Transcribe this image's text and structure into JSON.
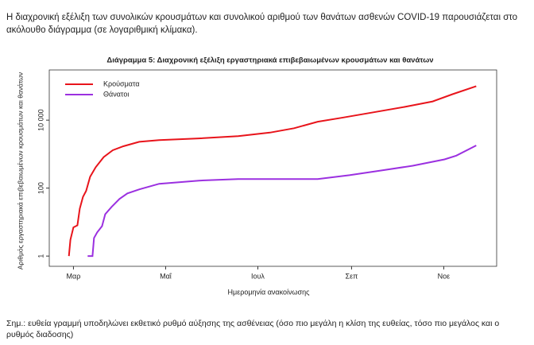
{
  "intro": "Η διαχρονική εξέλιξη των συνολικών κρουσμάτων και συνολικού αριθμού των θανάτων ασθενών COVID-19 παρουσιάζεται στο ακόλουθο διάγραμμα (σε λογαριθμική κλίμακα).",
  "chart_data": {
    "type": "line",
    "title": "Διάγραμμα 5: Διαχρονική εξέλιξη εργαστηριακά επιβεβαιωμένων κρουσμάτων και θανάτων",
    "xlabel": "Ημερομηνία ανακοίνωσης",
    "ylabel": "Αριθμός εργαστηριακά επιβεβαιωμένων κρουσμάτων και θανάτων",
    "log_y": true,
    "legend": "top-left",
    "xlim": [
      45,
      341
    ],
    "xticks": [
      {
        "value": 61,
        "label": "Μαρ"
      },
      {
        "value": 122,
        "label": "Μαΐ"
      },
      {
        "value": 183,
        "label": "Ιουλ"
      },
      {
        "value": 245,
        "label": "Σεπ"
      },
      {
        "value": 306,
        "label": "Νοε"
      }
    ],
    "ylim": [
      0.5,
      300000
    ],
    "yticks": [
      1,
      100,
      {
        "value": 10000,
        "label": "10 000"
      }
    ],
    "series": [
      {
        "name": "Κρούσματα",
        "color": "#e8141b",
        "x": [
          58,
          59,
          61,
          63.6,
          65.2,
          67.3,
          69.4,
          72,
          75.7,
          81,
          87,
          94,
          104.5,
          117.7,
          144,
          170,
          191,
          207,
          222.6,
          238.4,
          259.4,
          280.4,
          298.7,
          311.8,
          327.5
        ],
        "values": [
          1,
          3,
          7,
          8,
          25,
          55,
          83,
          215,
          410,
          820,
          1300,
          1700,
          2300,
          2600,
          2900,
          3400,
          4300,
          5800,
          9000,
          11700,
          17000,
          24700,
          35600,
          58000,
          100000
        ]
      },
      {
        "name": "Θάνατοι",
        "color": "#9b30e0",
        "x": [
          70.4,
          73.6,
          74.6,
          76.7,
          79.9,
          82,
          86.2,
          91.4,
          96.7,
          104.6,
          117.7,
          144,
          170,
          196.3,
          222.6,
          243.6,
          264.5,
          285.5,
          306.5,
          314.3,
          327.5
        ],
        "values": [
          1,
          1,
          3.4,
          5,
          7.6,
          17,
          28,
          48,
          70,
          92,
          134,
          166,
          184,
          184,
          184,
          240,
          330,
          455,
          700,
          900,
          1800
        ]
      }
    ]
  },
  "note": "Σημ.: ευθεία γραμμή υποδηλώνει εκθετικό ρυθμό αύξησης της ασθένειας (όσο πιο μεγάλη η κλίση της ευθείας, τόσο πιο μεγάλος και ο ρυθμός διαδοσης)"
}
